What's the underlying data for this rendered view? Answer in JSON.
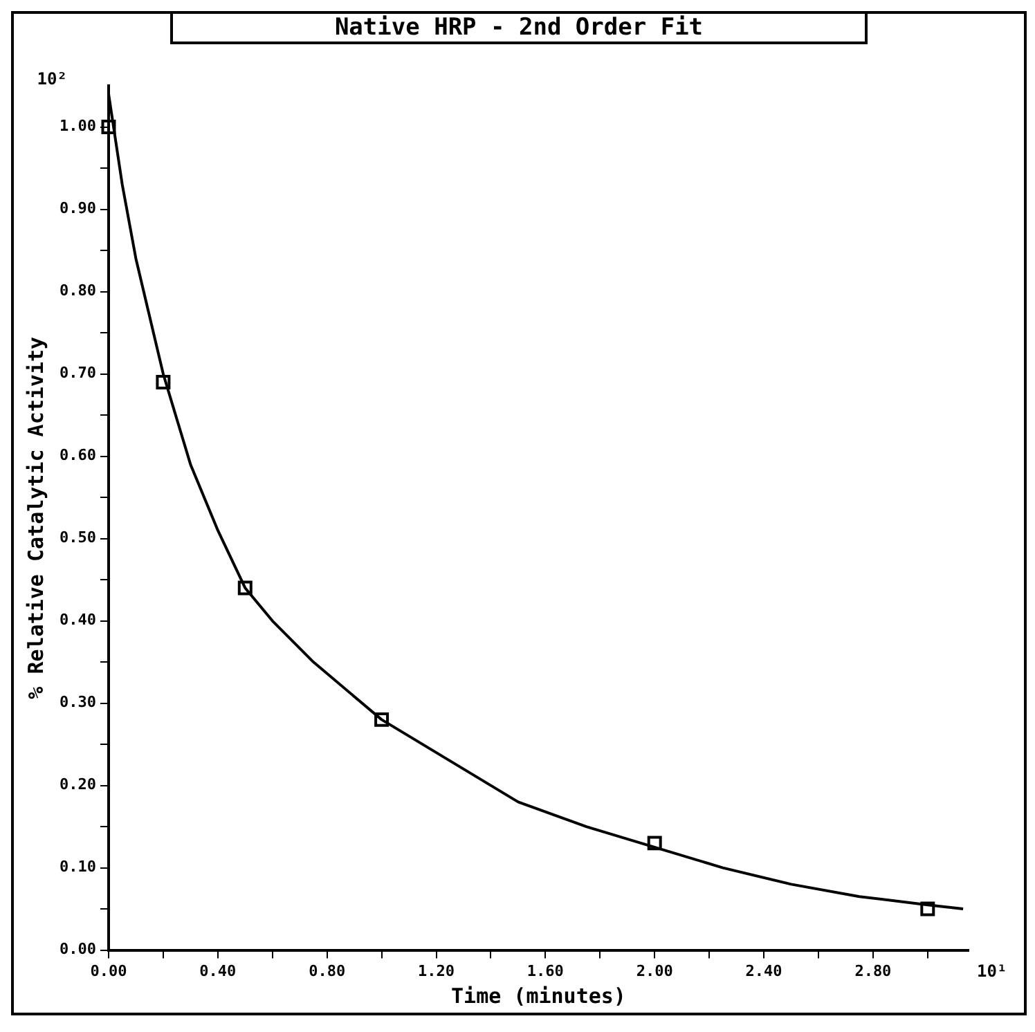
{
  "chart_data": {
    "type": "scatter",
    "title": "Native HRP - 2nd Order Fit",
    "xlabel": "Time (minutes)",
    "ylabel": "% Relative Catalytic Activity",
    "annotations": [
      "10²",
      "10¹"
    ],
    "xlim": [
      0,
      3.15
    ],
    "ylim": [
      0,
      1.05
    ],
    "xticks": [
      {
        "value": 0,
        "label": "0.00"
      },
      {
        "value": 0.2,
        "label": null
      },
      {
        "value": 0.4,
        "label": "0.40"
      },
      {
        "value": 0.6,
        "label": null
      },
      {
        "value": 0.8,
        "label": "0.80"
      },
      {
        "value": 1.0,
        "label": null
      },
      {
        "value": 1.2,
        "label": "1.20"
      },
      {
        "value": 1.4,
        "label": null
      },
      {
        "value": 1.6,
        "label": "1.60"
      },
      {
        "value": 1.8,
        "label": null
      },
      {
        "value": 2.0,
        "label": "2.00"
      },
      {
        "value": 2.2,
        "label": null
      },
      {
        "value": 2.4,
        "label": "2.40"
      },
      {
        "value": 2.6,
        "label": null
      },
      {
        "value": 2.8,
        "label": "2.80"
      },
      {
        "value": 3.0,
        "label": null
      }
    ],
    "yticks": [
      {
        "value": 0,
        "label": "0.00"
      },
      {
        "value": 0.05,
        "label": null
      },
      {
        "value": 0.1,
        "label": "0.10"
      },
      {
        "value": 0.15,
        "label": null
      },
      {
        "value": 0.2,
        "label": "0.20"
      },
      {
        "value": 0.25,
        "label": null
      },
      {
        "value": 0.3,
        "label": "0.30"
      },
      {
        "value": 0.35,
        "label": null
      },
      {
        "value": 0.4,
        "label": "0.40"
      },
      {
        "value": 0.45,
        "label": null
      },
      {
        "value": 0.5,
        "label": "0.50"
      },
      {
        "value": 0.55,
        "label": null
      },
      {
        "value": 0.6,
        "label": "0.60"
      },
      {
        "value": 0.65,
        "label": null
      },
      {
        "value": 0.7,
        "label": "0.70"
      },
      {
        "value": 0.75,
        "label": null
      },
      {
        "value": 0.8,
        "label": "0.80"
      },
      {
        "value": 0.85,
        "label": null
      },
      {
        "value": 0.9,
        "label": "0.90"
      },
      {
        "value": 0.95,
        "label": null
      },
      {
        "value": 1.0,
        "label": "1.00"
      }
    ],
    "grid": false,
    "legend": false,
    "series": [
      {
        "type": "scatter",
        "color": "#000000",
        "marker": "square",
        "x": [
          0,
          0.2,
          0.5,
          1.0,
          2.0,
          3.0
        ],
        "values": [
          1.0,
          0.69,
          0.44,
          0.28,
          0.13,
          0.05
        ]
      },
      {
        "type": "line",
        "color": "#000000",
        "marker": "none",
        "line_style": "solid",
        "x": [
          0,
          0.05,
          0.1,
          0.2,
          0.3,
          0.4,
          0.5,
          0.6,
          0.75,
          1.0,
          1.25,
          1.5,
          1.75,
          2.0,
          2.25,
          2.5,
          2.75,
          3.0,
          3.13
        ],
        "values": [
          1.04,
          0.93,
          0.84,
          0.7,
          0.59,
          0.51,
          0.44,
          0.4,
          0.35,
          0.28,
          0.23,
          0.18,
          0.15,
          0.125,
          0.1,
          0.08,
          0.065,
          0.055,
          0.05
        ]
      }
    ]
  }
}
